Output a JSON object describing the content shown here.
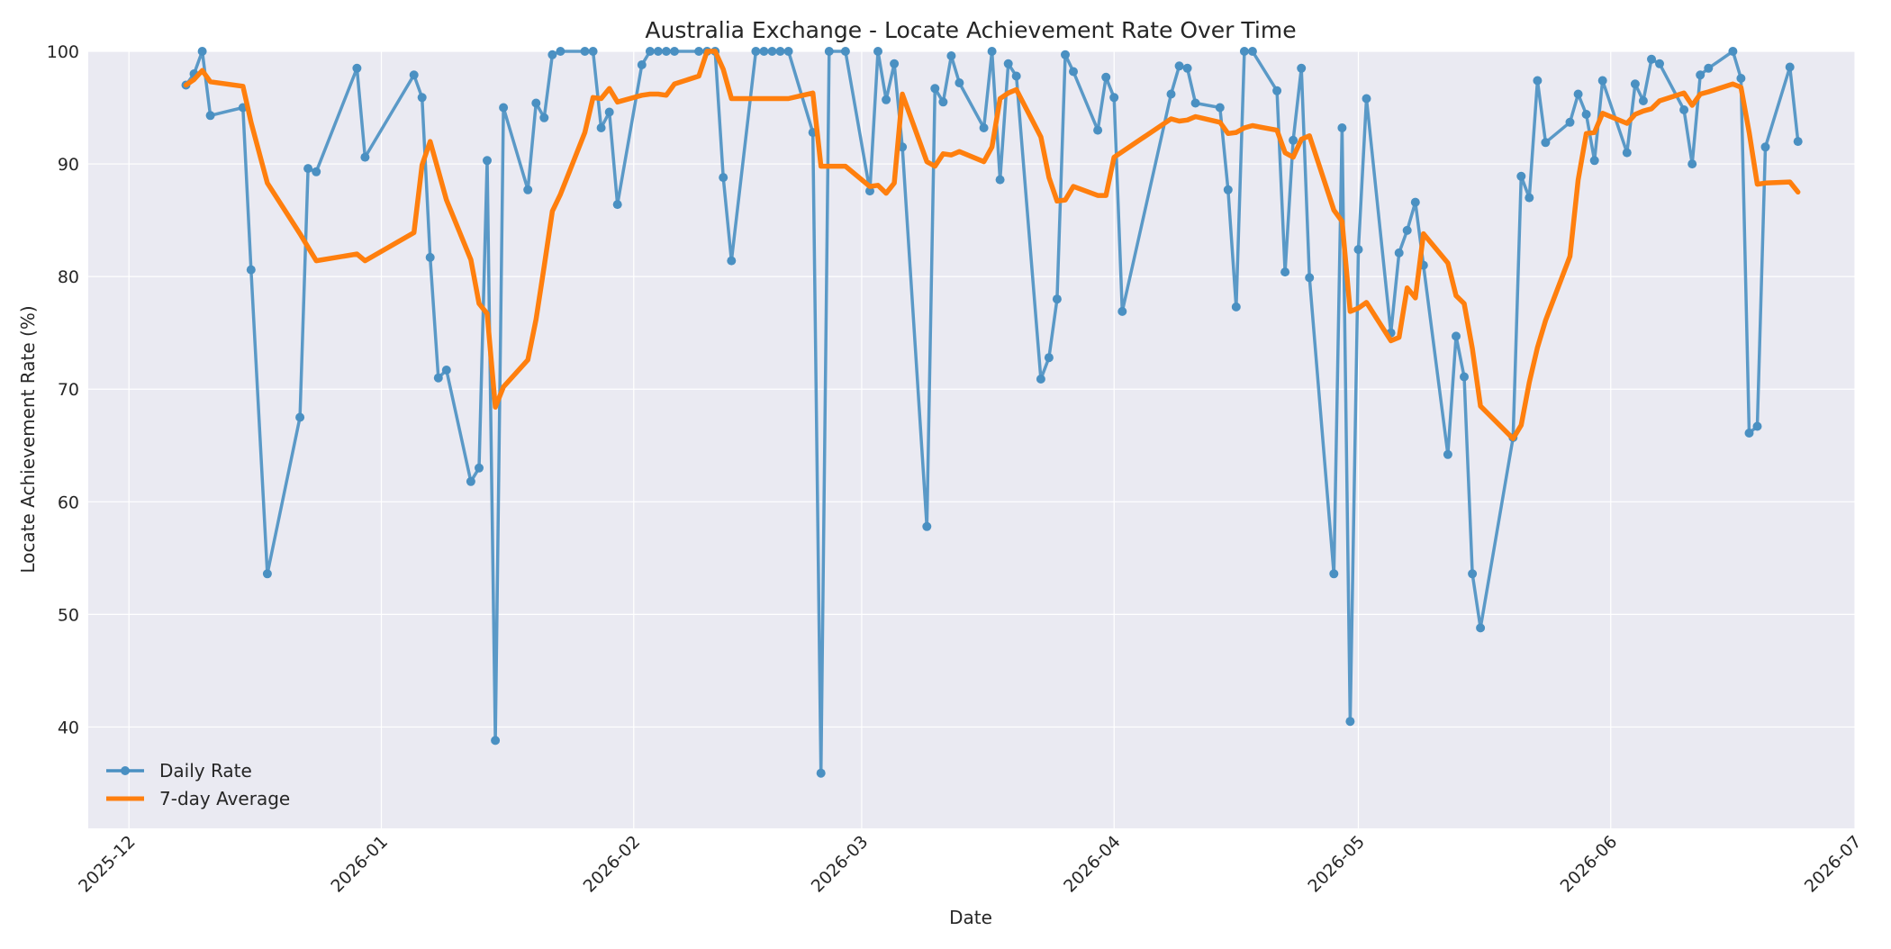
{
  "chart_data": {
    "type": "line",
    "title": "Australia Exchange - Locate Achievement Rate Over Time",
    "xlabel": "Date",
    "ylabel": "Locate Achievement Rate (%)",
    "x_axis": {
      "type": "date",
      "range": [
        "2025-11-26",
        "2026-07-01"
      ],
      "ticks": [
        {
          "date": "2025-12-01",
          "label": "2025-12"
        },
        {
          "date": "2026-01-01",
          "label": "2026-01"
        },
        {
          "date": "2026-02-01",
          "label": "2026-02"
        },
        {
          "date": "2026-03-01",
          "label": "2026-03"
        },
        {
          "date": "2026-04-01",
          "label": "2026-04"
        },
        {
          "date": "2026-05-01",
          "label": "2026-05"
        },
        {
          "date": "2026-06-01",
          "label": "2026-06"
        },
        {
          "date": "2026-07-01",
          "label": "2026-07"
        }
      ]
    },
    "ylim": [
      31,
      100
    ],
    "y_ticks": [
      40,
      50,
      60,
      70,
      80,
      90,
      100
    ],
    "grid": true,
    "legend_position": "bottom-left",
    "series": [
      {
        "name": "Daily Rate",
        "color": "#4a90c2",
        "marker": "circle",
        "points": [
          [
            "2025-12-08",
            97.0
          ],
          [
            "2025-12-09",
            98.0
          ],
          [
            "2025-12-10",
            100.0
          ],
          [
            "2025-12-11",
            94.3
          ],
          [
            "2025-12-15",
            95.0
          ],
          [
            "2025-12-16",
            80.6
          ],
          [
            "2025-12-18",
            53.6
          ],
          [
            "2025-12-22",
            67.5
          ],
          [
            "2025-12-23",
            89.6
          ],
          [
            "2025-12-24",
            89.3
          ],
          [
            "2025-12-29",
            98.5
          ],
          [
            "2025-12-30",
            90.6
          ],
          [
            "2026-01-05",
            97.9
          ],
          [
            "2026-01-06",
            95.9
          ],
          [
            "2026-01-07",
            81.7
          ],
          [
            "2026-01-08",
            71.0
          ],
          [
            "2026-01-09",
            71.7
          ],
          [
            "2026-01-12",
            61.8
          ],
          [
            "2026-01-13",
            63.0
          ],
          [
            "2026-01-14",
            90.3
          ],
          [
            "2026-01-15",
            38.8
          ],
          [
            "2026-01-16",
            95.0
          ],
          [
            "2026-01-19",
            87.7
          ],
          [
            "2026-01-20",
            95.4
          ],
          [
            "2026-01-21",
            94.1
          ],
          [
            "2026-01-22",
            99.7
          ],
          [
            "2026-01-23",
            100.0
          ],
          [
            "2026-01-26",
            100.0
          ],
          [
            "2026-01-27",
            100.0
          ],
          [
            "2026-01-28",
            93.2
          ],
          [
            "2026-01-29",
            94.6
          ],
          [
            "2026-01-30",
            86.4
          ],
          [
            "2026-02-02",
            98.8
          ],
          [
            "2026-02-03",
            100.0
          ],
          [
            "2026-02-04",
            100.0
          ],
          [
            "2026-02-05",
            100.0
          ],
          [
            "2026-02-06",
            100.0
          ],
          [
            "2026-02-09",
            100.0
          ],
          [
            "2026-02-10",
            100.0
          ],
          [
            "2026-02-11",
            100.0
          ],
          [
            "2026-02-12",
            88.8
          ],
          [
            "2026-02-13",
            81.4
          ],
          [
            "2026-02-16",
            100.0
          ],
          [
            "2026-02-17",
            100.0
          ],
          [
            "2026-02-18",
            100.0
          ],
          [
            "2026-02-19",
            100.0
          ],
          [
            "2026-02-20",
            100.0
          ],
          [
            "2026-02-23",
            92.8
          ],
          [
            "2026-02-24",
            35.9
          ],
          [
            "2026-02-25",
            100.0
          ],
          [
            "2026-02-27",
            100.0
          ],
          [
            "2026-03-02",
            87.6
          ],
          [
            "2026-03-03",
            100.0
          ],
          [
            "2026-03-04",
            95.7
          ],
          [
            "2026-03-05",
            98.9
          ],
          [
            "2026-03-06",
            91.5
          ],
          [
            "2026-03-09",
            57.8
          ],
          [
            "2026-03-10",
            96.7
          ],
          [
            "2026-03-11",
            95.5
          ],
          [
            "2026-03-12",
            99.6
          ],
          [
            "2026-03-13",
            97.2
          ],
          [
            "2026-03-16",
            93.2
          ],
          [
            "2026-03-17",
            100.0
          ],
          [
            "2026-03-18",
            88.6
          ],
          [
            "2026-03-19",
            98.9
          ],
          [
            "2026-03-20",
            97.8
          ],
          [
            "2026-03-23",
            70.9
          ],
          [
            "2026-03-24",
            72.8
          ],
          [
            "2026-03-25",
            78.0
          ],
          [
            "2026-03-26",
            99.7
          ],
          [
            "2026-03-27",
            98.2
          ],
          [
            "2026-03-30",
            93.0
          ],
          [
            "2026-03-31",
            97.7
          ],
          [
            "2026-04-01",
            95.9
          ],
          [
            "2026-04-02",
            76.9
          ],
          [
            "2026-04-08",
            96.2
          ],
          [
            "2026-04-09",
            98.7
          ],
          [
            "2026-04-10",
            98.5
          ],
          [
            "2026-04-11",
            95.4
          ],
          [
            "2026-04-14",
            95.0
          ],
          [
            "2026-04-15",
            87.7
          ],
          [
            "2026-04-16",
            77.3
          ],
          [
            "2026-04-17",
            100.0
          ],
          [
            "2026-04-18",
            100.0
          ],
          [
            "2026-04-21",
            96.5
          ],
          [
            "2026-04-22",
            80.4
          ],
          [
            "2026-04-23",
            92.1
          ],
          [
            "2026-04-24",
            98.5
          ],
          [
            "2026-04-25",
            79.9
          ],
          [
            "2026-04-28",
            53.6
          ],
          [
            "2026-04-29",
            93.2
          ],
          [
            "2026-04-30",
            40.5
          ],
          [
            "2026-05-01",
            82.4
          ],
          [
            "2026-05-02",
            95.8
          ],
          [
            "2026-05-05",
            75.0
          ],
          [
            "2026-05-06",
            82.1
          ],
          [
            "2026-05-07",
            84.1
          ],
          [
            "2026-05-08",
            86.6
          ],
          [
            "2026-05-09",
            81.0
          ],
          [
            "2026-05-12",
            64.2
          ],
          [
            "2026-05-13",
            74.7
          ],
          [
            "2026-05-14",
            71.1
          ],
          [
            "2026-05-15",
            53.6
          ],
          [
            "2026-05-16",
            48.8
          ],
          [
            "2026-05-20",
            65.7
          ],
          [
            "2026-05-21",
            88.9
          ],
          [
            "2026-05-22",
            87.0
          ],
          [
            "2026-05-23",
            97.4
          ],
          [
            "2026-05-24",
            91.9
          ],
          [
            "2026-05-27",
            93.7
          ],
          [
            "2026-05-28",
            96.2
          ],
          [
            "2026-05-29",
            94.4
          ],
          [
            "2026-05-30",
            90.3
          ],
          [
            "2026-05-31",
            97.4
          ],
          [
            "2026-06-03",
            91.0
          ],
          [
            "2026-06-04",
            97.1
          ],
          [
            "2026-06-05",
            95.6
          ],
          [
            "2026-06-06",
            99.3
          ],
          [
            "2026-06-07",
            98.9
          ],
          [
            "2026-06-10",
            94.8
          ],
          [
            "2026-06-11",
            90.0
          ],
          [
            "2026-06-12",
            97.9
          ],
          [
            "2026-06-13",
            98.5
          ],
          [
            "2026-06-16",
            100.0
          ],
          [
            "2026-06-17",
            97.6
          ],
          [
            "2026-06-18",
            66.1
          ],
          [
            "2026-06-19",
            66.7
          ],
          [
            "2026-06-20",
            91.5
          ],
          [
            "2026-06-23",
            98.6
          ],
          [
            "2026-06-24",
            92.0
          ]
        ]
      },
      {
        "name": "7-day Average",
        "color": "#ff7f0e",
        "marker": "none",
        "points": [
          [
            "2025-12-08",
            97.0
          ],
          [
            "2025-12-09",
            97.5
          ],
          [
            "2025-12-10",
            98.3
          ],
          [
            "2025-12-11",
            97.3
          ],
          [
            "2025-12-15",
            96.9
          ],
          [
            "2025-12-16",
            93.7
          ],
          [
            "2025-12-18",
            88.3
          ],
          [
            "2025-12-22",
            83.8
          ],
          [
            "2025-12-23",
            82.6
          ],
          [
            "2025-12-24",
            81.4
          ],
          [
            "2025-12-29",
            82.0
          ],
          [
            "2025-12-30",
            81.4
          ],
          [
            "2026-01-05",
            83.9
          ],
          [
            "2026-01-06",
            89.9
          ],
          [
            "2026-01-07",
            92.0
          ],
          [
            "2026-01-08",
            89.4
          ],
          [
            "2026-01-09",
            86.8
          ],
          [
            "2026-01-12",
            81.5
          ],
          [
            "2026-01-13",
            77.6
          ],
          [
            "2026-01-14",
            76.7
          ],
          [
            "2026-01-15",
            68.4
          ],
          [
            "2026-01-16",
            70.2
          ],
          [
            "2026-01-19",
            72.6
          ],
          [
            "2026-01-20",
            76.2
          ],
          [
            "2026-01-21",
            80.9
          ],
          [
            "2026-01-22",
            85.8
          ],
          [
            "2026-01-23",
            87.3
          ],
          [
            "2026-01-26",
            92.8
          ],
          [
            "2026-01-27",
            95.9
          ],
          [
            "2026-01-28",
            95.8
          ],
          [
            "2026-01-29",
            96.7
          ],
          [
            "2026-01-30",
            95.5
          ],
          [
            "2026-02-02",
            96.1
          ],
          [
            "2026-02-03",
            96.2
          ],
          [
            "2026-02-04",
            96.2
          ],
          [
            "2026-02-05",
            96.1
          ],
          [
            "2026-02-06",
            97.1
          ],
          [
            "2026-02-09",
            97.8
          ],
          [
            "2026-02-10",
            100.0
          ],
          [
            "2026-02-11",
            100.0
          ],
          [
            "2026-02-12",
            98.4
          ],
          [
            "2026-02-13",
            95.8
          ],
          [
            "2026-02-16",
            95.8
          ],
          [
            "2026-02-17",
            95.8
          ],
          [
            "2026-02-18",
            95.8
          ],
          [
            "2026-02-19",
            95.8
          ],
          [
            "2026-02-20",
            95.8
          ],
          [
            "2026-02-23",
            96.3
          ],
          [
            "2026-02-24",
            89.8
          ],
          [
            "2026-02-25",
            89.8
          ],
          [
            "2026-02-27",
            89.8
          ],
          [
            "2026-03-02",
            88.0
          ],
          [
            "2026-03-03",
            88.1
          ],
          [
            "2026-03-04",
            87.4
          ],
          [
            "2026-03-05",
            88.3
          ],
          [
            "2026-03-06",
            96.2
          ],
          [
            "2026-03-09",
            90.2
          ],
          [
            "2026-03-10",
            89.8
          ],
          [
            "2026-03-11",
            90.9
          ],
          [
            "2026-03-12",
            90.8
          ],
          [
            "2026-03-13",
            91.1
          ],
          [
            "2026-03-16",
            90.2
          ],
          [
            "2026-03-17",
            91.5
          ],
          [
            "2026-03-18",
            95.8
          ],
          [
            "2026-03-19",
            96.3
          ],
          [
            "2026-03-20",
            96.6
          ],
          [
            "2026-03-23",
            92.4
          ],
          [
            "2026-03-24",
            88.8
          ],
          [
            "2026-03-25",
            86.7
          ],
          [
            "2026-03-26",
            86.8
          ],
          [
            "2026-03-27",
            88.0
          ],
          [
            "2026-03-30",
            87.2
          ],
          [
            "2026-03-31",
            87.2
          ],
          [
            "2026-04-01",
            90.6
          ],
          [
            "2026-04-08",
            94.0
          ],
          [
            "2026-04-09",
            93.8
          ],
          [
            "2026-04-10",
            93.9
          ],
          [
            "2026-04-11",
            94.2
          ],
          [
            "2026-04-14",
            93.7
          ],
          [
            "2026-04-15",
            92.7
          ],
          [
            "2026-04-16",
            92.8
          ],
          [
            "2026-04-17",
            93.2
          ],
          [
            "2026-04-18",
            93.4
          ],
          [
            "2026-04-21",
            93.0
          ],
          [
            "2026-04-22",
            91.0
          ],
          [
            "2026-04-23",
            90.6
          ],
          [
            "2026-04-24",
            92.2
          ],
          [
            "2026-04-25",
            92.5
          ],
          [
            "2026-04-28",
            85.9
          ],
          [
            "2026-04-29",
            84.9
          ],
          [
            "2026-04-30",
            76.9
          ],
          [
            "2026-05-01",
            77.2
          ],
          [
            "2026-05-02",
            77.7
          ],
          [
            "2026-05-05",
            74.3
          ],
          [
            "2026-05-06",
            74.6
          ],
          [
            "2026-05-07",
            79.0
          ],
          [
            "2026-05-08",
            78.1
          ],
          [
            "2026-05-09",
            83.8
          ],
          [
            "2026-05-12",
            81.2
          ],
          [
            "2026-05-13",
            78.3
          ],
          [
            "2026-05-14",
            77.6
          ],
          [
            "2026-05-15",
            73.6
          ],
          [
            "2026-05-16",
            68.5
          ],
          [
            "2026-05-20",
            65.6
          ],
          [
            "2026-05-21",
            66.8
          ],
          [
            "2026-05-22",
            70.6
          ],
          [
            "2026-05-23",
            73.7
          ],
          [
            "2026-05-24",
            76.1
          ],
          [
            "2026-05-27",
            81.8
          ],
          [
            "2026-05-28",
            88.6
          ],
          [
            "2026-05-29",
            92.7
          ],
          [
            "2026-05-30",
            92.8
          ],
          [
            "2026-05-31",
            94.5
          ],
          [
            "2026-06-03",
            93.6
          ],
          [
            "2026-06-04",
            94.4
          ],
          [
            "2026-06-05",
            94.7
          ],
          [
            "2026-06-06",
            94.9
          ],
          [
            "2026-06-07",
            95.6
          ],
          [
            "2026-06-10",
            96.3
          ],
          [
            "2026-06-11",
            95.2
          ],
          [
            "2026-06-12",
            96.2
          ],
          [
            "2026-06-13",
            96.4
          ],
          [
            "2026-06-16",
            97.1
          ],
          [
            "2026-06-17",
            96.8
          ],
          [
            "2026-06-18",
            92.8
          ],
          [
            "2026-06-19",
            88.2
          ],
          [
            "2026-06-20",
            88.3
          ],
          [
            "2026-06-23",
            88.4
          ],
          [
            "2026-06-24",
            87.5
          ]
        ]
      }
    ]
  }
}
